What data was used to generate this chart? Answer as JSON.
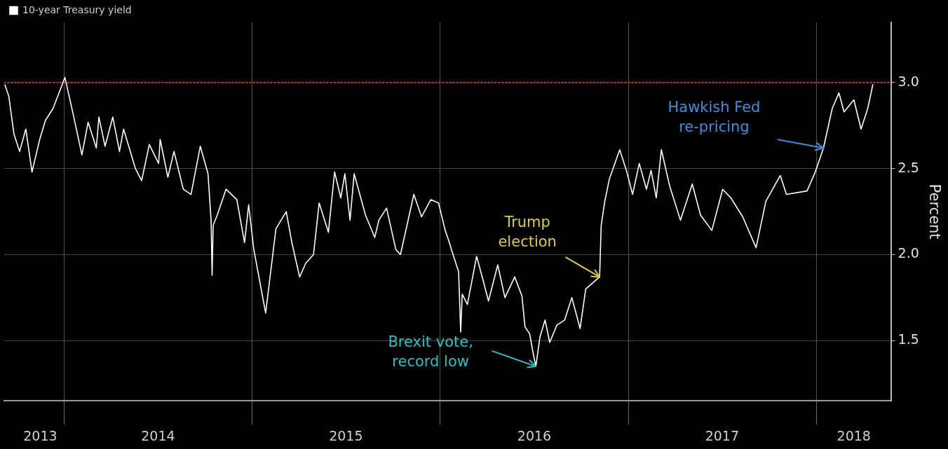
{
  "chart_data": {
    "type": "line",
    "ylabel": "Percent",
    "legend": "top left",
    "grid": true,
    "xlim": [
      "2013-09-06",
      "2018-05-26"
    ],
    "xticks": [
      {
        "value": "2013-11-15",
        "label": "2013"
      },
      {
        "value": "2014-01-01",
        "label": null
      },
      {
        "value": "2014-07-02",
        "label": "2014"
      },
      {
        "value": "2015-01-01",
        "label": null
      },
      {
        "value": "2015-07-02",
        "label": "2015"
      },
      {
        "value": "2016-01-01",
        "label": null
      },
      {
        "value": "2016-07-02",
        "label": "2016"
      },
      {
        "value": "2017-01-01",
        "label": null
      },
      {
        "value": "2017-07-02",
        "label": "2017"
      },
      {
        "value": "2018-01-01",
        "label": null
      },
      {
        "value": "2018-03-15",
        "label": "2018"
      }
    ],
    "ylim": [
      1.15,
      3.35
    ],
    "yticks": [
      {
        "value": 1.5,
        "label": "1.5"
      },
      {
        "value": 2.0,
        "label": "2.0"
      },
      {
        "value": 2.5,
        "label": "2.5"
      },
      {
        "value": 3.0,
        "label": "3.0"
      }
    ],
    "ref_lines": [
      {
        "axis": "y",
        "value": 3.0,
        "color": "#e8173c",
        "line_style": "dotted"
      }
    ],
    "annotations": [
      {
        "text": "Hawkish Fed\nre-pricing",
        "x": "2018-01-15",
        "y": 2.62
      },
      {
        "text": "Trump\nelection",
        "x": "2016-11-06",
        "y": 1.87
      },
      {
        "text": "Brexit vote,\nrecord low",
        "x": "2016-07-05",
        "y": 1.35
      }
    ],
    "series": [
      {
        "name": "10-year Treasury yield",
        "color": "#ffffff",
        "x": [
          "2013-09-07",
          "2013-09-15",
          "2013-09-25",
          "2013-10-06",
          "2013-10-18",
          "2013-10-30",
          "2013-11-14",
          "2013-11-25",
          "2013-12-10",
          "2014-01-02",
          "2014-01-17",
          "2014-02-04",
          "2014-02-16",
          "2014-03-04",
          "2014-03-09",
          "2014-03-21",
          "2014-04-05",
          "2014-04-18",
          "2014-04-26",
          "2014-05-19",
          "2014-05-31",
          "2014-06-15",
          "2014-07-03",
          "2014-07-06",
          "2014-07-21",
          "2014-08-02",
          "2014-08-20",
          "2014-09-04",
          "2014-09-22",
          "2014-10-07",
          "2014-10-13",
          "2014-10-15",
          "2014-10-17",
          "2014-10-25",
          "2014-11-11",
          "2014-12-02",
          "2014-12-17",
          "2014-12-25",
          "2015-01-04",
          "2015-01-27",
          "2015-02-16",
          "2015-03-08",
          "2015-03-19",
          "2015-04-03",
          "2015-04-15",
          "2015-04-30",
          "2015-05-11",
          "2015-05-29",
          "2015-06-10",
          "2015-06-22",
          "2015-06-30",
          "2015-07-10",
          "2015-07-18",
          "2015-08-09",
          "2015-08-27",
          "2015-09-04",
          "2015-09-19",
          "2015-10-07",
          "2015-10-16",
          "2015-11-11",
          "2015-11-26",
          "2015-12-14",
          "2015-12-29",
          "2016-01-11",
          "2016-01-19",
          "2016-01-24",
          "2016-02-06",
          "2016-02-10",
          "2016-02-13",
          "2016-02-23",
          "2016-03-12",
          "2016-03-22",
          "2016-04-04",
          "2016-04-22",
          "2016-05-06",
          "2016-05-25",
          "2016-06-08",
          "2016-06-14",
          "2016-06-23",
          "2016-06-29",
          "2016-07-05",
          "2016-07-13",
          "2016-07-23",
          "2016-08-01",
          "2016-08-15",
          "2016-08-30",
          "2016-09-13",
          "2016-09-29",
          "2016-10-10",
          "2016-10-29",
          "2016-11-06",
          "2016-11-09",
          "2016-11-16",
          "2016-11-25",
          "2016-12-15",
          "2016-12-28",
          "2017-01-09",
          "2017-01-22",
          "2017-02-05",
          "2017-02-14",
          "2017-02-24",
          "2017-03-06",
          "2017-03-22",
          "2017-04-12",
          "2017-05-05",
          "2017-05-21",
          "2017-06-12",
          "2017-07-03",
          "2017-07-19",
          "2017-08-11",
          "2017-09-06",
          "2017-09-25",
          "2017-10-23",
          "2017-11-04",
          "2017-12-14",
          "2017-12-30",
          "2018-01-15",
          "2018-02-01",
          "2018-02-14",
          "2018-02-24",
          "2018-03-15",
          "2018-03-29",
          "2018-04-11",
          "2018-04-21"
        ],
        "values": [
          2.99,
          2.92,
          2.7,
          2.6,
          2.73,
          2.48,
          2.67,
          2.78,
          2.85,
          3.03,
          2.83,
          2.58,
          2.77,
          2.62,
          2.8,
          2.63,
          2.8,
          2.6,
          2.73,
          2.5,
          2.43,
          2.64,
          2.53,
          2.67,
          2.45,
          2.6,
          2.38,
          2.35,
          2.63,
          2.47,
          2.2,
          1.88,
          2.17,
          2.23,
          2.38,
          2.32,
          2.07,
          2.29,
          2.03,
          1.66,
          2.15,
          2.25,
          2.07,
          1.87,
          1.95,
          2.0,
          2.3,
          2.13,
          2.48,
          2.33,
          2.47,
          2.2,
          2.47,
          2.23,
          2.1,
          2.2,
          2.27,
          2.03,
          2.0,
          2.35,
          2.22,
          2.32,
          2.3,
          2.14,
          2.07,
          2.02,
          1.9,
          1.55,
          1.77,
          1.71,
          1.99,
          1.88,
          1.73,
          1.94,
          1.75,
          1.87,
          1.76,
          1.58,
          1.54,
          1.44,
          1.35,
          1.52,
          1.62,
          1.49,
          1.59,
          1.62,
          1.75,
          1.57,
          1.8,
          1.85,
          1.87,
          2.17,
          2.31,
          2.44,
          2.61,
          2.49,
          2.35,
          2.53,
          2.38,
          2.49,
          2.33,
          2.61,
          2.4,
          2.2,
          2.41,
          2.23,
          2.14,
          2.38,
          2.33,
          2.22,
          2.04,
          2.31,
          2.46,
          2.35,
          2.37,
          2.48,
          2.62,
          2.85,
          2.94,
          2.83,
          2.9,
          2.73,
          2.85,
          2.99
        ]
      }
    ]
  }
}
